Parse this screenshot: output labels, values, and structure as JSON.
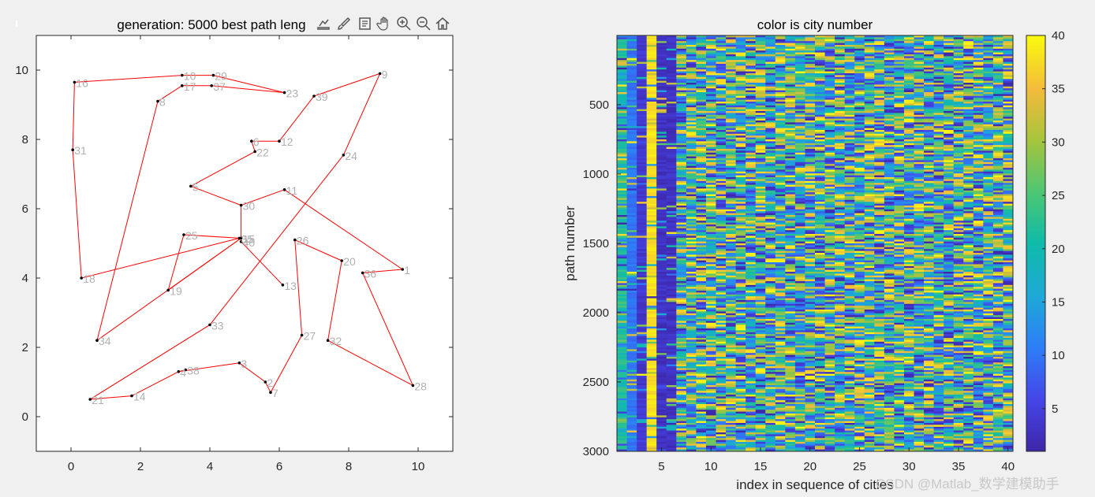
{
  "figure": {
    "watermark": "CSDN @Matlab_数学建模助手",
    "toolbar": [
      "export-icon",
      "brush-icon",
      "datatip-icon",
      "pan-icon",
      "zoom-in-icon",
      "zoom-out-icon",
      "home-icon"
    ]
  },
  "chart_data": [
    {
      "type": "scatter",
      "title": "generation: 5000  best path leng",
      "xlim": [
        -1,
        11
      ],
      "ylim": [
        -1,
        11
      ],
      "xticks": [
        0,
        2,
        4,
        6,
        8,
        10
      ],
      "yticks": [
        0,
        2,
        4,
        6,
        8,
        10
      ],
      "line_color": "#ff0000",
      "point_color": "#000000",
      "label_color": "#b0b0b0",
      "cities": [
        {
          "id": "1",
          "x": 9.55,
          "y": 4.25
        },
        {
          "id": "2",
          "x": 5.6,
          "y": 1.0
        },
        {
          "id": "3",
          "x": 4.85,
          "y": 1.55
        },
        {
          "id": "4",
          "x": 3.1,
          "y": 1.3
        },
        {
          "id": "5",
          "x": 3.45,
          "y": 6.65
        },
        {
          "id": "6",
          "x": 5.2,
          "y": 7.95
        },
        {
          "id": "7",
          "x": 5.75,
          "y": 0.7
        },
        {
          "id": "8",
          "x": 2.5,
          "y": 9.1
        },
        {
          "id": "9",
          "x": 8.9,
          "y": 9.9
        },
        {
          "id": "10",
          "x": 3.2,
          "y": 9.85
        },
        {
          "id": "11",
          "x": 6.15,
          "y": 6.55
        },
        {
          "id": "12",
          "x": 6.0,
          "y": 7.95
        },
        {
          "id": "13",
          "x": 6.1,
          "y": 3.8
        },
        {
          "id": "14",
          "x": 1.75,
          "y": 0.6
        },
        {
          "id": "15",
          "x": 4.9,
          "y": 5.15
        },
        {
          "id": "16",
          "x": 0.1,
          "y": 9.65
        },
        {
          "id": "17",
          "x": 3.2,
          "y": 9.55
        },
        {
          "id": "18",
          "x": 0.3,
          "y": 4.0
        },
        {
          "id": "19",
          "x": 2.8,
          "y": 3.65
        },
        {
          "id": "20",
          "x": 7.8,
          "y": 4.5
        },
        {
          "id": "21",
          "x": 0.55,
          "y": 0.5
        },
        {
          "id": "22",
          "x": 5.3,
          "y": 7.65
        },
        {
          "id": "23",
          "x": 6.15,
          "y": 9.35
        },
        {
          "id": "24",
          "x": 7.85,
          "y": 7.55
        },
        {
          "id": "25",
          "x": 3.25,
          "y": 5.25
        },
        {
          "id": "26",
          "x": 6.45,
          "y": 5.1
        },
        {
          "id": "27",
          "x": 6.65,
          "y": 2.35
        },
        {
          "id": "28",
          "x": 9.85,
          "y": 0.9
        },
        {
          "id": "29",
          "x": 4.1,
          "y": 9.85
        },
        {
          "id": "30",
          "x": 4.9,
          "y": 6.1
        },
        {
          "id": "31",
          "x": 0.05,
          "y": 7.7
        },
        {
          "id": "32",
          "x": 7.4,
          "y": 2.2
        },
        {
          "id": "33",
          "x": 4.0,
          "y": 2.65
        },
        {
          "id": "34",
          "x": 0.75,
          "y": 2.2
        },
        {
          "id": "35",
          "x": 4.85,
          "y": 5.15
        },
        {
          "id": "36",
          "x": 8.4,
          "y": 4.15
        },
        {
          "id": "37",
          "x": 4.05,
          "y": 9.55
        },
        {
          "id": "38",
          "x": 3.3,
          "y": 1.35
        },
        {
          "id": "39",
          "x": 7.0,
          "y": 9.25
        },
        {
          "id": "40",
          "x": 4.9,
          "y": 5.05
        }
      ],
      "tour": [
        "16",
        "10",
        "29",
        "23",
        "37",
        "17",
        "8",
        "34",
        "15",
        "19",
        "25",
        "35",
        "18",
        "31",
        "16"
      ],
      "tour_segments": [
        [
          "16",
          "10"
        ],
        [
          "10",
          "29"
        ],
        [
          "29",
          "23"
        ],
        [
          "23",
          "37"
        ],
        [
          "37",
          "17"
        ],
        [
          "17",
          "8"
        ],
        [
          "8",
          "34"
        ],
        [
          "34",
          "15"
        ],
        [
          "15",
          "19"
        ],
        [
          "19",
          "25"
        ],
        [
          "25",
          "35"
        ],
        [
          "35",
          "18"
        ],
        [
          "18",
          "31"
        ],
        [
          "31",
          "16"
        ],
        [
          "6",
          "12"
        ],
        [
          "12",
          "39"
        ],
        [
          "6",
          "22"
        ],
        [
          "22",
          "5"
        ],
        [
          "5",
          "30"
        ],
        [
          "30",
          "40"
        ],
        [
          "40",
          "13"
        ],
        [
          "30",
          "11"
        ],
        [
          "11",
          "1"
        ],
        [
          "1",
          "36"
        ],
        [
          "36",
          "28"
        ],
        [
          "28",
          "32"
        ],
        [
          "32",
          "20"
        ],
        [
          "20",
          "26"
        ],
        [
          "26",
          "27"
        ],
        [
          "27",
          "7"
        ],
        [
          "7",
          "2"
        ],
        [
          "2",
          "3"
        ],
        [
          "3",
          "4"
        ],
        [
          "4",
          "14"
        ],
        [
          "14",
          "21"
        ],
        [
          "21",
          "33"
        ],
        [
          "33",
          "24"
        ],
        [
          "24",
          "9"
        ],
        [
          "9",
          "39"
        ],
        [
          "38",
          "4"
        ]
      ]
    },
    {
      "type": "heatmap",
      "title": "color is city number",
      "xlabel": "index in sequence of cities",
      "ylabel": "path number",
      "rows": 3000,
      "cols": 40,
      "xticks": [
        5,
        10,
        15,
        20,
        25,
        30,
        35,
        40
      ],
      "yticks": [
        500,
        1000,
        1500,
        2000,
        2500,
        3000
      ],
      "colorbar": {
        "range": [
          1,
          40
        ],
        "ticks": [
          5,
          10,
          15,
          20,
          25,
          30,
          35,
          40
        ],
        "colormap": "parula"
      },
      "column_bias": {
        "2": 10,
        "3": 4,
        "4": 38,
        "5": 3,
        "6": 3
      }
    }
  ]
}
